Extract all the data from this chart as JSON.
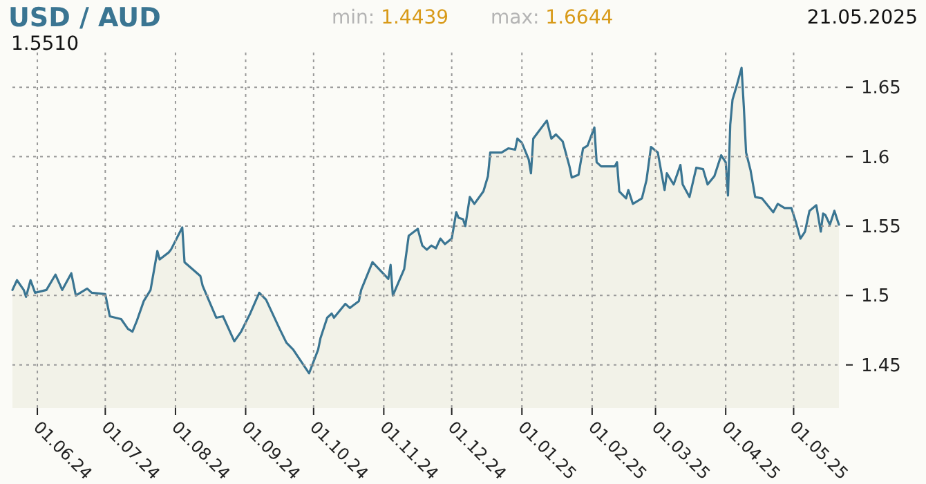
{
  "chart_data": {
    "type": "area",
    "title": "USD / AUD",
    "annotations": [
      "1.5510",
      "min: 1.4439",
      "max: 1.6644",
      "21.05.2025"
    ],
    "xlim": [
      "2024-05-21",
      "2025-05-21"
    ],
    "xticks": [
      {
        "value": "2024-06-01",
        "label": "01.06.24"
      },
      {
        "value": "2024-07-01",
        "label": "01.07.24"
      },
      {
        "value": "2024-08-01",
        "label": "01.08.24"
      },
      {
        "value": "2024-09-01",
        "label": "01.09.24"
      },
      {
        "value": "2024-10-01",
        "label": "01.10.24"
      },
      {
        "value": "2024-11-01",
        "label": "01.11.24"
      },
      {
        "value": "2024-12-01",
        "label": "01.12.24"
      },
      {
        "value": "2025-01-01",
        "label": "01.01.25"
      },
      {
        "value": "2025-02-01",
        "label": "01.02.25"
      },
      {
        "value": "2025-03-01",
        "label": "01.03.25"
      },
      {
        "value": "2025-04-01",
        "label": "01.04.25"
      },
      {
        "value": "2025-05-01",
        "label": "01.05.25"
      }
    ],
    "ylim": [
      1.419,
      1.675
    ],
    "yticks": [
      1.45,
      1.5,
      1.55,
      1.6,
      1.65
    ],
    "grid": true,
    "series": [
      {
        "color": "#3a7592",
        "x": [
          "2024-05-21",
          "2024-05-23",
          "2024-05-26",
          "2024-05-27",
          "2024-05-29",
          "2024-05-31",
          "2024-06-05",
          "2024-06-09",
          "2024-06-12",
          "2024-06-16",
          "2024-06-18",
          "2024-06-23",
          "2024-06-25",
          "2024-07-01",
          "2024-07-03",
          "2024-07-08",
          "2024-07-11",
          "2024-07-13",
          "2024-07-15",
          "2024-07-18",
          "2024-07-21",
          "2024-07-24",
          "2024-07-25",
          "2024-07-29",
          "2024-07-30",
          "2024-08-04",
          "2024-08-05",
          "2024-08-12",
          "2024-08-13",
          "2024-08-19",
          "2024-08-22",
          "2024-08-27",
          "2024-08-30",
          "2024-09-03",
          "2024-09-07",
          "2024-09-10",
          "2024-09-16",
          "2024-09-19",
          "2024-09-22",
          "2024-09-29",
          "2024-10-03",
          "2024-10-04",
          "2024-10-07",
          "2024-10-09",
          "2024-10-10",
          "2024-10-15",
          "2024-10-17",
          "2024-10-21",
          "2024-10-22",
          "2024-10-27",
          "2024-11-03",
          "2024-11-04",
          "2024-11-05",
          "2024-11-10",
          "2024-11-12",
          "2024-11-16",
          "2024-11-18",
          "2024-11-20",
          "2024-11-22",
          "2024-11-24",
          "2024-11-26",
          "2024-11-28",
          "2024-12-01",
          "2024-12-03",
          "2024-12-04",
          "2024-12-06",
          "2024-12-07",
          "2024-12-09",
          "2024-12-11",
          "2024-12-15",
          "2024-12-17",
          "2024-12-18",
          "2024-12-23",
          "2024-12-26",
          "2024-12-29",
          "2024-12-30",
          "2025-01-01",
          "2025-01-04",
          "2025-01-05",
          "2025-01-06",
          "2025-01-12",
          "2025-01-14",
          "2025-01-16",
          "2025-01-19",
          "2025-01-22",
          "2025-01-23",
          "2025-01-26",
          "2025-01-28",
          "2025-01-30",
          "2025-02-02",
          "2025-02-03",
          "2025-02-05",
          "2025-02-11",
          "2025-02-12",
          "2025-02-13",
          "2025-02-16",
          "2025-02-17",
          "2025-02-19",
          "2025-02-23",
          "2025-02-25",
          "2025-02-27",
          "2025-03-02",
          "2025-03-05",
          "2025-03-06",
          "2025-03-09",
          "2025-03-12",
          "2025-03-13",
          "2025-03-16",
          "2025-03-19",
          "2025-03-22",
          "2025-03-24",
          "2025-03-27",
          "2025-03-30",
          "2025-04-01",
          "2025-04-02",
          "2025-04-03",
          "2025-04-04",
          "2025-04-06",
          "2025-04-07",
          "2025-04-08",
          "2025-04-09",
          "2025-04-10",
          "2025-04-12",
          "2025-04-14",
          "2025-04-17",
          "2025-04-22",
          "2025-04-24",
          "2025-04-27",
          "2025-04-30",
          "2025-05-02",
          "2025-05-04",
          "2025-05-06",
          "2025-05-08",
          "2025-05-11",
          "2025-05-13",
          "2025-05-14",
          "2025-05-15",
          "2025-05-17",
          "2025-05-19",
          "2025-05-21"
        ],
        "values": [
          1.504,
          1.511,
          1.504,
          1.499,
          1.511,
          1.502,
          1.504,
          1.515,
          1.504,
          1.516,
          1.5,
          1.505,
          1.502,
          1.501,
          1.485,
          1.483,
          1.476,
          1.474,
          1.482,
          1.496,
          1.504,
          1.532,
          1.526,
          1.531,
          1.533,
          1.549,
          1.524,
          1.514,
          1.507,
          1.484,
          1.485,
          1.467,
          1.474,
          1.487,
          1.502,
          1.497,
          1.476,
          1.466,
          1.461,
          1.444,
          1.461,
          1.469,
          1.484,
          1.487,
          1.484,
          1.494,
          1.491,
          1.496,
          1.504,
          1.524,
          1.512,
          1.522,
          1.5,
          1.519,
          1.543,
          1.548,
          1.536,
          1.533,
          1.536,
          1.534,
          1.541,
          1.537,
          1.541,
          1.56,
          1.556,
          1.555,
          1.55,
          1.571,
          1.566,
          1.575,
          1.586,
          1.603,
          1.603,
          1.606,
          1.605,
          1.613,
          1.61,
          1.598,
          1.588,
          1.613,
          1.626,
          1.613,
          1.616,
          1.611,
          1.593,
          1.585,
          1.587,
          1.606,
          1.608,
          1.621,
          1.596,
          1.593,
          1.593,
          1.596,
          1.575,
          1.57,
          1.576,
          1.566,
          1.57,
          1.583,
          1.607,
          1.603,
          1.576,
          1.588,
          1.58,
          1.594,
          1.58,
          1.571,
          1.592,
          1.591,
          1.58,
          1.586,
          1.601,
          1.596,
          1.572,
          1.623,
          1.641,
          1.652,
          1.658,
          1.664,
          1.636,
          1.603,
          1.59,
          1.571,
          1.57,
          1.56,
          1.566,
          1.563,
          1.563,
          1.553,
          1.541,
          1.546,
          1.561,
          1.565,
          1.546,
          1.559,
          1.558,
          1.551,
          1.561,
          1.551
        ]
      }
    ]
  }
}
